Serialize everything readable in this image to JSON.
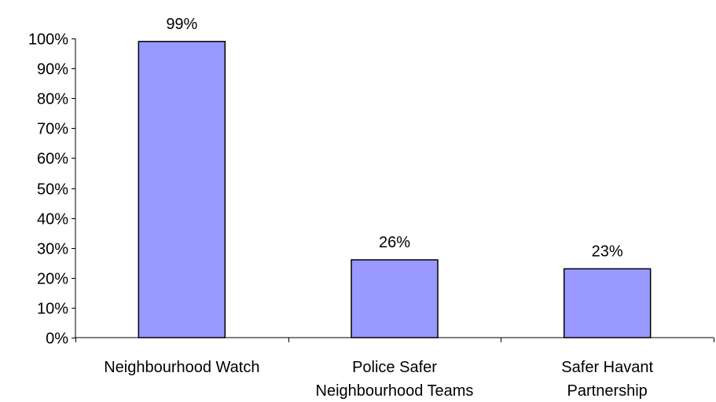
{
  "chart_data": {
    "type": "bar",
    "title": "",
    "xlabel": "",
    "ylabel": "",
    "categories": [
      [
        "Neighbourhood Watch"
      ],
      [
        "Police Safer",
        "Neighbourhood Teams"
      ],
      [
        "Safer Havant",
        "Partnership"
      ]
    ],
    "values": [
      99,
      26,
      23
    ],
    "value_labels": [
      "99%",
      "26%",
      "23%"
    ],
    "ylim": [
      0,
      100
    ],
    "yticks": [
      0,
      10,
      20,
      30,
      40,
      50,
      60,
      70,
      80,
      90,
      100
    ],
    "ytick_labels": [
      "0%",
      "10%",
      "20%",
      "30%",
      "40%",
      "50%",
      "60%",
      "70%",
      "80%",
      "90%",
      "100%"
    ],
    "grid": false,
    "legend": "none",
    "bar_color": "#9999ff",
    "bar_edge_color": "#000000"
  }
}
